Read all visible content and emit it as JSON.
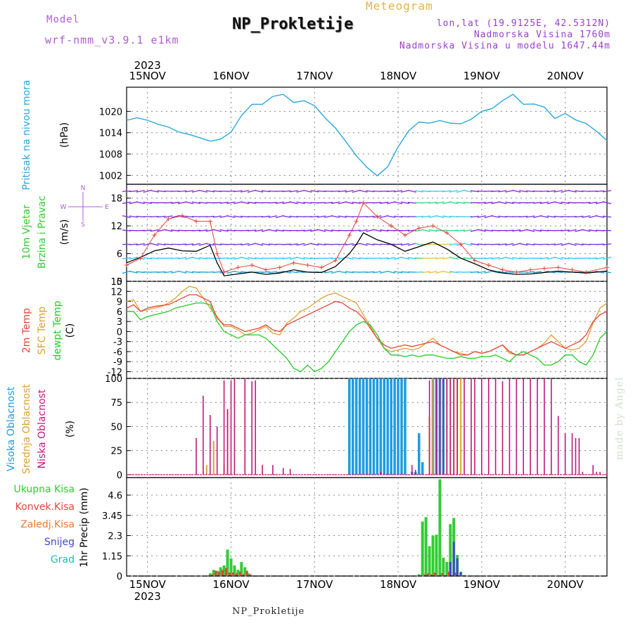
{
  "header": {
    "model_label": "Model",
    "model_name": "wrf-nmm_v3.9.1  e1km",
    "title": "NP_Prokletije",
    "subtitle": "Meteogram",
    "lonlat": "lon,lat (19.9125E, 42.5312N)",
    "elev": "Nadmorska Visina 1760m",
    "elev_model": "Nadmorska Visina u modelu 1647.44m"
  },
  "footer": {
    "name": "NP_Prokletije",
    "watermark": "made by Angel"
  },
  "colors": {
    "pressure": "#29a8e0",
    "wind_label": "#33cc33",
    "temp": "#e8443a",
    "sfc_temp": "#e0a030",
    "dewpt": "#22cc22",
    "high_cloud": "#1e9be0",
    "mid_cloud": "#e0a030",
    "low_cloud": "#c0187a",
    "total_precip": "#33cc33",
    "conv_precip": "#e8443a",
    "snow_precip": "#4444dd",
    "grad": "#22bbbb",
    "frozen": "#f07a30",
    "wind_dir": "#b05cd6"
  },
  "chart_data": [
    {
      "type": "line",
      "title": "Pritisak na nivou mora",
      "ylabel": "(hPa)",
      "ylim": [
        999.5,
        1026.8
      ],
      "yticks": [
        1002,
        1008,
        1014,
        1020
      ],
      "x_dates": [
        "15NOV",
        "16NOV",
        "17NOV",
        "18NOV",
        "19NOV",
        "20NOV"
      ],
      "x_year": "2023",
      "grid": true,
      "series": [
        {
          "x": [
            0,
            3,
            6,
            9,
            12,
            15,
            18,
            21,
            24,
            27,
            30,
            33,
            36,
            39,
            42,
            45,
            48,
            51,
            54,
            57,
            60,
            63,
            66,
            69,
            72,
            75,
            78,
            81,
            84,
            87,
            90,
            93,
            96,
            99,
            102,
            105,
            108,
            111,
            114,
            117,
            120,
            123,
            126,
            129,
            132,
            135,
            138
          ],
          "values": [
            1017.5,
            1018.2,
            1017.5,
            1016.4,
            1015.6,
            1014.2,
            1013.5,
            1012.6,
            1011.6,
            1012.2,
            1014.2,
            1018.8,
            1022.0,
            1022.0,
            1024.2,
            1024.8,
            1022.5,
            1023.0,
            1021.6,
            1018.2,
            1015.3,
            1011.5,
            1007.5,
            1004.3,
            1001.9,
            1004.4,
            1010.0,
            1014.5,
            1017.0,
            1016.7,
            1017.4,
            1016.7,
            1016.5,
            1017.8,
            1020.0,
            1020.8,
            1023.0,
            1024.8,
            1022.0,
            1022.1,
            1021.2,
            1018.0,
            1019.4,
            1017.6,
            1016.6,
            1014.4,
            1011.8
          ]
        }
      ]
    },
    {
      "type": "line",
      "title": "10m Vjetar Brzina i Pravac",
      "ylabel": "(m/s)",
      "ylim": [
        0,
        21
      ],
      "yticks": [
        0,
        6,
        12,
        18
      ],
      "dir_labels": [
        "N",
        "E",
        "S",
        "W"
      ],
      "grid": true,
      "series": [
        {
          "name": "speed",
          "x": [
            0,
            4,
            8,
            12,
            16,
            20,
            24,
            26,
            28,
            32,
            36,
            40,
            44,
            48,
            52,
            56,
            60,
            64,
            66,
            68,
            72,
            76,
            80,
            84,
            88,
            92,
            96,
            100,
            104,
            108,
            112,
            116,
            120,
            124,
            128,
            132,
            138
          ],
          "values": [
            4.0,
            5.2,
            6.6,
            7.2,
            6.6,
            6.5,
            7.8,
            4.0,
            1.2,
            1.6,
            2.0,
            1.5,
            1.8,
            2.5,
            2.0,
            1.9,
            3.2,
            6.0,
            8.0,
            10.5,
            9.0,
            8.0,
            6.5,
            7.5,
            8.5,
            7.0,
            5.0,
            3.8,
            2.5,
            1.8,
            1.5,
            1.6,
            1.9,
            2.2,
            2.0,
            1.8,
            2.2
          ]
        },
        {
          "name": "gust",
          "x": [
            0,
            4,
            8,
            12,
            16,
            20,
            24,
            26,
            28,
            32,
            36,
            40,
            44,
            48,
            52,
            56,
            60,
            64,
            66,
            68,
            72,
            76,
            80,
            84,
            88,
            92,
            96,
            100,
            104,
            108,
            112,
            116,
            120,
            124,
            128,
            132,
            138
          ],
          "values": [
            3.5,
            5.0,
            10.0,
            13.5,
            14.2,
            13.0,
            13.0,
            6.0,
            2.0,
            3.0,
            3.5,
            2.5,
            3.0,
            4.0,
            3.5,
            3.0,
            4.5,
            10.0,
            13.0,
            17.0,
            14.0,
            12.0,
            10.0,
            11.5,
            12.0,
            10.5,
            8.0,
            4.5,
            3.5,
            2.5,
            2.0,
            2.5,
            2.8,
            3.0,
            2.5,
            2.0,
            3.0
          ]
        }
      ]
    },
    {
      "type": "line",
      "title": "2m Temp / SFC Temp / dewpt Temp",
      "ylabel": "(C)",
      "ylim": [
        -14,
        15
      ],
      "yticks": [
        -12,
        -9,
        -6,
        -3,
        0,
        3,
        6,
        9,
        12,
        15
      ],
      "grid": true,
      "series": [
        {
          "name": "2m Temp",
          "x": [
            0,
            2,
            4,
            6,
            8,
            10,
            12,
            14,
            16,
            18,
            20,
            22,
            24,
            26,
            28,
            30,
            32,
            34,
            36,
            38,
            40,
            42,
            44,
            46,
            48,
            50,
            52,
            54,
            56,
            58,
            60,
            62,
            64,
            66,
            68,
            70,
            72,
            74,
            76,
            78,
            80,
            82,
            84,
            86,
            88,
            90,
            92,
            94,
            96,
            98,
            100,
            102,
            104,
            106,
            108,
            110,
            112,
            114,
            116,
            118,
            120,
            122,
            124,
            126,
            128,
            130,
            132,
            134,
            136,
            138
          ],
          "values": [
            7,
            8,
            6,
            7,
            7.5,
            7.8,
            8,
            9,
            10,
            11,
            11,
            10,
            9,
            4,
            2,
            2,
            1,
            0,
            0.5,
            1,
            2,
            0.5,
            0,
            2,
            3,
            4,
            5,
            6,
            7,
            8,
            9,
            8.5,
            7,
            6,
            4,
            1,
            -2,
            -4,
            -5,
            -4.5,
            -4,
            -4.5,
            -4,
            -3.5,
            -3,
            -4,
            -5,
            -6,
            -7,
            -7,
            -6,
            -6.5,
            -6,
            -5,
            -4,
            -6,
            -7,
            -7,
            -6,
            -5,
            -4,
            -3,
            -4,
            -5,
            -4,
            -3,
            -1,
            3,
            5,
            6
          ]
        },
        {
          "name": "SFC Temp",
          "x": [
            0,
            2,
            4,
            6,
            8,
            10,
            12,
            14,
            16,
            18,
            20,
            22,
            24,
            26,
            28,
            30,
            32,
            34,
            36,
            38,
            40,
            42,
            44,
            46,
            48,
            50,
            52,
            54,
            56,
            58,
            60,
            62,
            64,
            66,
            68,
            70,
            72,
            74,
            76,
            78,
            80,
            82,
            84,
            86,
            88,
            90,
            92,
            94,
            96,
            98,
            100,
            102,
            104,
            106,
            108,
            110,
            112,
            114,
            116,
            118,
            120,
            122,
            124,
            126,
            128,
            130,
            132,
            134,
            136,
            138
          ],
          "values": [
            9,
            9.5,
            6,
            6.5,
            7,
            7.5,
            8.5,
            10,
            12,
            13.5,
            13,
            10,
            7,
            4.5,
            1.5,
            1.5,
            0.5,
            -1,
            -0.5,
            0.5,
            1.5,
            -0.5,
            -1,
            2.5,
            4,
            6,
            7,
            8.5,
            10,
            11,
            11.5,
            10.5,
            9.5,
            8.5,
            5,
            1.5,
            -2,
            -5,
            -6,
            -5.5,
            -5,
            -5.5,
            -5,
            -3.5,
            -2,
            -4,
            -5,
            -6,
            -6.5,
            -7,
            -6,
            -6.5,
            -6,
            -5,
            -4,
            -6.5,
            -7,
            -7,
            -6,
            -5,
            -3.5,
            -1,
            -3,
            -5,
            -5.5,
            -5,
            -3,
            2.5,
            7,
            8.5
          ]
        },
        {
          "name": "dewpt Temp",
          "x": [
            0,
            2,
            4,
            6,
            8,
            10,
            12,
            14,
            16,
            18,
            20,
            22,
            24,
            26,
            28,
            30,
            32,
            34,
            36,
            38,
            40,
            42,
            44,
            46,
            48,
            50,
            52,
            54,
            56,
            58,
            60,
            62,
            64,
            66,
            68,
            70,
            72,
            74,
            76,
            78,
            80,
            82,
            84,
            86,
            88,
            90,
            92,
            94,
            96,
            98,
            100,
            102,
            104,
            106,
            108,
            110,
            112,
            114,
            116,
            118,
            120,
            122,
            124,
            126,
            128,
            130,
            132,
            134,
            136,
            138
          ],
          "values": [
            6,
            6,
            3.5,
            4.5,
            5,
            5.5,
            6,
            7,
            7.5,
            8,
            8.5,
            8.5,
            8,
            3,
            0,
            -1,
            -2,
            -1,
            -1,
            -1,
            -2,
            -4,
            -6,
            -8,
            -11,
            -12,
            -10,
            -12,
            -11,
            -9,
            -6,
            -3,
            0,
            2,
            3,
            2,
            -1,
            -5,
            -7,
            -7,
            -7.5,
            -7,
            -7.5,
            -7,
            -7,
            -7.5,
            -8,
            -8,
            -7.5,
            -8,
            -8,
            -7.5,
            -7.5,
            -7,
            -8,
            -9,
            -7,
            -6,
            -7,
            -8,
            -10,
            -10,
            -9,
            -7,
            -7,
            -9,
            -10,
            -7,
            -2,
            0
          ]
        }
      ]
    },
    {
      "type": "bar",
      "title": "Visoka Oblacnost / Srednja Oblacnost / Niska Oblacnost",
      "ylabel": "(%)",
      "ylim": [
        -3,
        100
      ],
      "yticks": [
        0,
        25,
        50,
        75,
        100
      ],
      "grid": true,
      "series": [
        {
          "name": "Visoka Oblacnost",
          "x": [
            64,
            65,
            66,
            67,
            68,
            69,
            70,
            71,
            72,
            73,
            74,
            75,
            76,
            77,
            78,
            79,
            80,
            82,
            83,
            84,
            85,
            88,
            89,
            90,
            91
          ],
          "values": [
            100,
            100,
            100,
            100,
            100,
            100,
            100,
            100,
            100,
            100,
            100,
            100,
            100,
            100,
            100,
            100,
            100,
            3,
            3,
            43,
            13,
            100,
            100,
            100,
            100
          ]
        },
        {
          "name": "Srednja Oblacnost",
          "x": [
            23,
            25,
            28,
            29,
            87,
            88,
            92,
            93,
            94,
            95,
            96
          ],
          "values": [
            10,
            35,
            10,
            68,
            60,
            100,
            100,
            100,
            100,
            100,
            100
          ]
        },
        {
          "name": "Niska Oblacnost",
          "x": [
            20,
            22,
            24,
            26,
            28,
            29,
            30,
            31,
            34,
            36,
            37,
            39,
            42,
            45,
            47,
            73,
            82,
            83,
            87,
            89,
            90,
            91,
            92,
            93,
            94,
            95,
            97,
            99,
            100,
            102,
            104,
            106,
            108,
            110,
            112,
            114,
            116,
            118,
            120,
            122,
            124,
            126,
            128,
            129,
            130,
            131,
            134,
            135,
            136,
            138
          ],
          "values": [
            38,
            82,
            62,
            50,
            98,
            68,
            98,
            100,
            100,
            97,
            98,
            10,
            10,
            7,
            6,
            3,
            10,
            5,
            98,
            100,
            100,
            100,
            100,
            100,
            100,
            100,
            100,
            100,
            100,
            100,
            100,
            100,
            97,
            100,
            100,
            100,
            100,
            100,
            100,
            100,
            61,
            43,
            43,
            38,
            38,
            3,
            10,
            3,
            3,
            3
          ]
        }
      ]
    },
    {
      "type": "bar",
      "title": "Ukupna Kisa / Konvek.Kisa / Zaledj.Kisa / Snijeg / Grad",
      "ylabel": "1hr Precip (mm)",
      "ylim": [
        0,
        5.6
      ],
      "yticks": [
        0,
        1.15,
        2.3,
        3.45,
        4.6
      ],
      "grid": true,
      "legend": [
        "Ukupna  Kisa",
        "Konvek.Kisa",
        "Zaledj.Kisa",
        "Snijeg",
        "Grad"
      ],
      "series": [
        {
          "name": "Ukupna Kisa",
          "x": [
            24,
            25,
            26,
            27,
            28,
            29,
            30,
            31,
            32,
            33,
            34,
            35,
            84,
            85,
            86,
            87,
            88,
            89,
            90,
            91,
            92,
            93,
            94,
            95,
            96,
            97,
            113
          ],
          "values": [
            0.15,
            0.35,
            0.3,
            0.5,
            0.6,
            1.5,
            1.0,
            0.6,
            0.35,
            0.8,
            0.5,
            0.15,
            0.1,
            3.1,
            3.35,
            1.7,
            2.3,
            2.35,
            5.5,
            1.05,
            0.8,
            2.95,
            3.3,
            1.2,
            0.25,
            0.05,
            0.05
          ]
        },
        {
          "name": "Konvek.Kisa",
          "x": [
            24,
            25,
            26,
            27,
            28,
            29,
            30,
            31,
            32,
            33,
            34,
            35,
            85,
            86,
            87,
            88,
            90,
            92,
            94
          ],
          "values": [
            0.1,
            0.3,
            0.25,
            0.35,
            0.45,
            0.2,
            0.2,
            0.15,
            0.25,
            0.1,
            0.3,
            0.1,
            0.1,
            0.15,
            0.1,
            0.2,
            0.15,
            0.25,
            0.2
          ]
        },
        {
          "name": "Snijeg",
          "x": [
            93,
            94,
            95,
            96
          ],
          "values": [
            0.8,
            1.95,
            1.0,
            0.2
          ]
        }
      ]
    }
  ],
  "panel_labels": {
    "p1": [
      "Pritisak na nivou mora",
      "(hPa)"
    ],
    "p2": [
      "10m Vjetar",
      "Brzina i Pravac",
      "(m/s)"
    ],
    "p3": [
      "2m Temp",
      "SFC Temp",
      "dewpt Temp",
      "(C)"
    ],
    "p4": [
      "Visoka Oblacnost",
      "Srednja Oblacnost",
      "Niska Oblacnost",
      "(%)"
    ],
    "p5": [
      "Ukupna  Kisa",
      "Konvek.Kisa",
      "Zaledj.Kisa",
      "Snijeg",
      "Grad"
    ],
    "p5_axis": "1hr Precip (mm)"
  }
}
